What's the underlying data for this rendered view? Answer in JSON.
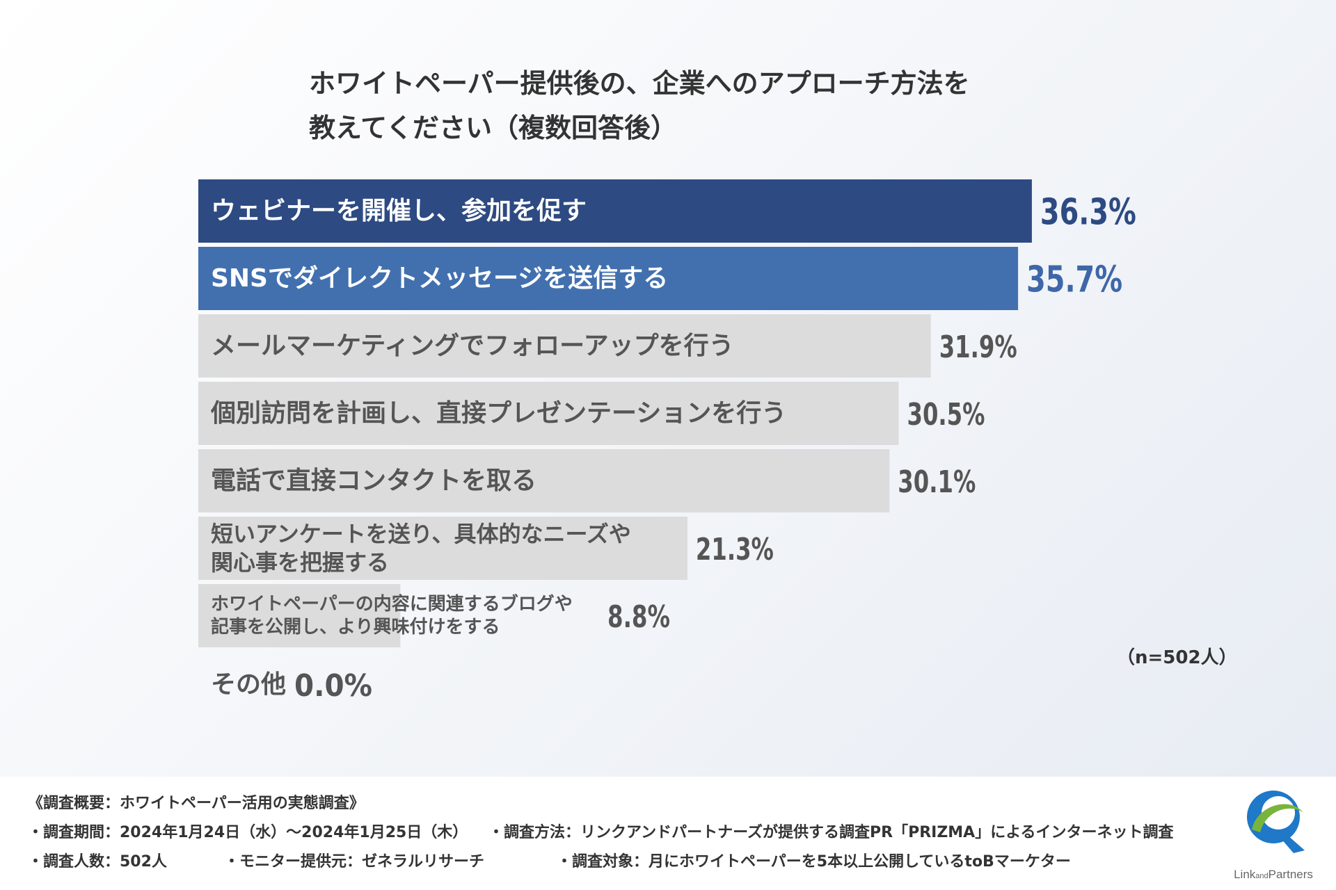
{
  "chart_data": {
    "type": "bar",
    "orientation": "horizontal",
    "title_lines": [
      "ホワイトペーパー提供後の、企業へのアプローチ方法を",
      "教えてください（複数回答後）"
    ],
    "categories": [
      [
        "ウェビナーを開催し、参加を促す"
      ],
      [
        "SNSでダイレクトメッセージを送信する"
      ],
      [
        "メールマーケティングでフォローアップを行う"
      ],
      [
        "個別訪問を計画し、直接プレゼンテーションを行う"
      ],
      [
        "電話で直接コンタクトを取る"
      ],
      [
        "短いアンケートを送り、具体的なニーズや",
        "関心事を把握する"
      ],
      [
        "ホワイトペーパーの内容に関連するブログや",
        "記事を公開し、より興味付けをする"
      ],
      [
        "その他"
      ]
    ],
    "values": [
      36.3,
      35.7,
      31.9,
      30.5,
      30.1,
      21.3,
      8.8,
      0.0
    ],
    "value_labels": [
      "36.3%",
      "35.7%",
      "31.9%",
      "30.5%",
      "30.1%",
      "21.3%",
      "8.8%",
      "0.0%"
    ],
    "unit": "%",
    "sample_size": "（n=502人）",
    "colors": {
      "rank1": "#2d4a82",
      "rank2": "#4270af",
      "others": "#dcdcdc",
      "highlight_text": "#ffffff",
      "other_text": "#555555",
      "rank1_value": "#2d4a82",
      "rank2_value": "#3d67a8",
      "other_value": "#555555"
    },
    "grid": false,
    "legend": "none"
  },
  "footer": {
    "survey_name": "《調査概要：ホワイトペーパー活用の実態調査》",
    "period": "・調査期間：2024年1月24日（水）〜2024年1月25日（木）",
    "method": "・調査方法：リンクアンドパートナーズが提供する調査PR「PRIZMA」によるインターネット調査",
    "respondents": "・調査人数：502人",
    "monitor": "・モニター提供元：ゼネラルリサーチ",
    "target": "・調査対象：月にホワイトペーパーを5本以上公開しているtoBマーケター"
  },
  "logo": {
    "text_main": "Link",
    "text_small": "and",
    "text_end": "Partners",
    "icon": "link-and-partners-logo-icon",
    "colors": {
      "blue": "#1f78c8",
      "green": "#78b43c",
      "gray": "#666666"
    }
  }
}
